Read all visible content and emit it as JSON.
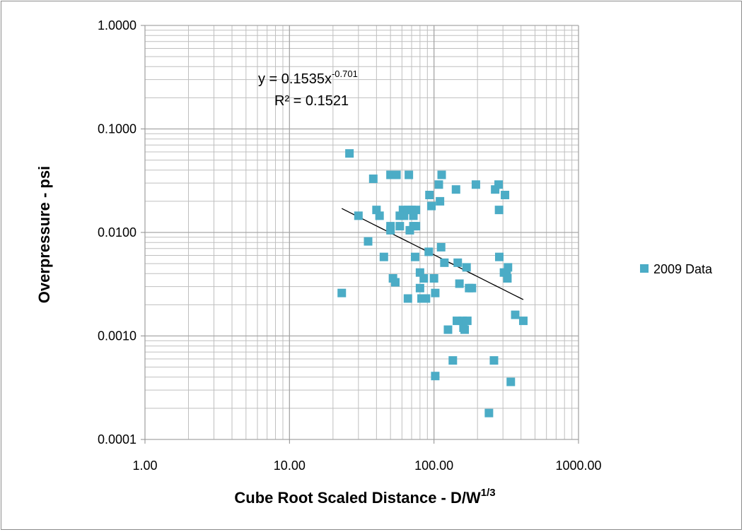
{
  "chart_data": {
    "type": "scatter",
    "xlabel": "Cube Root Scaled Distance - D/W",
    "xlabel_sup": "1/3",
    "ylabel": "Overpressure - psi",
    "x_scale": "log",
    "y_scale": "log",
    "xlim": [
      1,
      1000
    ],
    "ylim": [
      0.0001,
      1
    ],
    "x_ticks": [
      "1.00",
      "10.00",
      "100.00",
      "1000.00"
    ],
    "y_ticks": [
      "1.0000",
      "0.1000",
      "0.0100",
      "0.0010",
      "0.0001"
    ],
    "grid": "major and minor",
    "legend_position": "right",
    "colors": {
      "series": "#4bacc6",
      "trendline": "#000000",
      "grid_major": "#a6a6a6",
      "grid_minor": "#bfbfbf",
      "frame": "#8c8c8c"
    },
    "series": [
      {
        "name": "2009 Data",
        "marker": "square",
        "points": [
          [
            23,
            0.0026
          ],
          [
            26,
            0.058
          ],
          [
            30,
            0.0145
          ],
          [
            35,
            0.0082
          ],
          [
            38,
            0.033
          ],
          [
            40,
            0.0165
          ],
          [
            42,
            0.0145
          ],
          [
            45,
            0.0058
          ],
          [
            50,
            0.0115
          ],
          [
            50,
            0.0105
          ],
          [
            50,
            0.036
          ],
          [
            52,
            0.0036
          ],
          [
            54,
            0.0033
          ],
          [
            55,
            0.036
          ],
          [
            58,
            0.0145
          ],
          [
            58,
            0.0115
          ],
          [
            61,
            0.0165
          ],
          [
            62,
            0.0145
          ],
          [
            66,
            0.0165
          ],
          [
            66,
            0.0023
          ],
          [
            67,
            0.036
          ],
          [
            68,
            0.0105
          ],
          [
            70,
            0.0165
          ],
          [
            72,
            0.0145
          ],
          [
            72,
            0.0115
          ],
          [
            74,
            0.0058
          ],
          [
            75,
            0.0165
          ],
          [
            75,
            0.0115
          ],
          [
            80,
            0.0029
          ],
          [
            80,
            0.0041
          ],
          [
            82,
            0.0023
          ],
          [
            85,
            0.0036
          ],
          [
            88,
            0.0023
          ],
          [
            92,
            0.0065
          ],
          [
            93,
            0.023
          ],
          [
            96,
            0.018
          ],
          [
            100,
            0.0036
          ],
          [
            102,
            0.0026
          ],
          [
            102,
            0.00041
          ],
          [
            108,
            0.029
          ],
          [
            110,
            0.02
          ],
          [
            112,
            0.0072
          ],
          [
            113,
            0.036
          ],
          [
            118,
            0.0051
          ],
          [
            125,
            0.00115
          ],
          [
            135,
            0.00058
          ],
          [
            142,
            0.026
          ],
          [
            144,
            0.0014
          ],
          [
            146,
            0.0051
          ],
          [
            150,
            0.0032
          ],
          [
            158,
            0.0014
          ],
          [
            160,
            0.0012
          ],
          [
            163,
            0.00115
          ],
          [
            168,
            0.0046
          ],
          [
            170,
            0.0014
          ],
          [
            175,
            0.0029
          ],
          [
            183,
            0.0029
          ],
          [
            195,
            0.029
          ],
          [
            240,
            0.00018
          ],
          [
            260,
            0.00058
          ],
          [
            265,
            0.026
          ],
          [
            280,
            0.029
          ],
          [
            282,
            0.0165
          ],
          [
            283,
            0.0058
          ],
          [
            305,
            0.0041
          ],
          [
            310,
            0.023
          ],
          [
            318,
            0.0041
          ],
          [
            322,
            0.0036
          ],
          [
            325,
            0.0046
          ],
          [
            340,
            0.00036
          ],
          [
            365,
            0.0016
          ],
          [
            415,
            0.0014
          ]
        ]
      }
    ],
    "trendline": {
      "type": "power",
      "coefficient": 0.1535,
      "exponent": -0.701,
      "x_range": [
        23,
        415
      ],
      "equation_text": "y = 0.1535x",
      "equation_exponent": "-0.701",
      "r2_text": "R² = 0.1521"
    }
  }
}
